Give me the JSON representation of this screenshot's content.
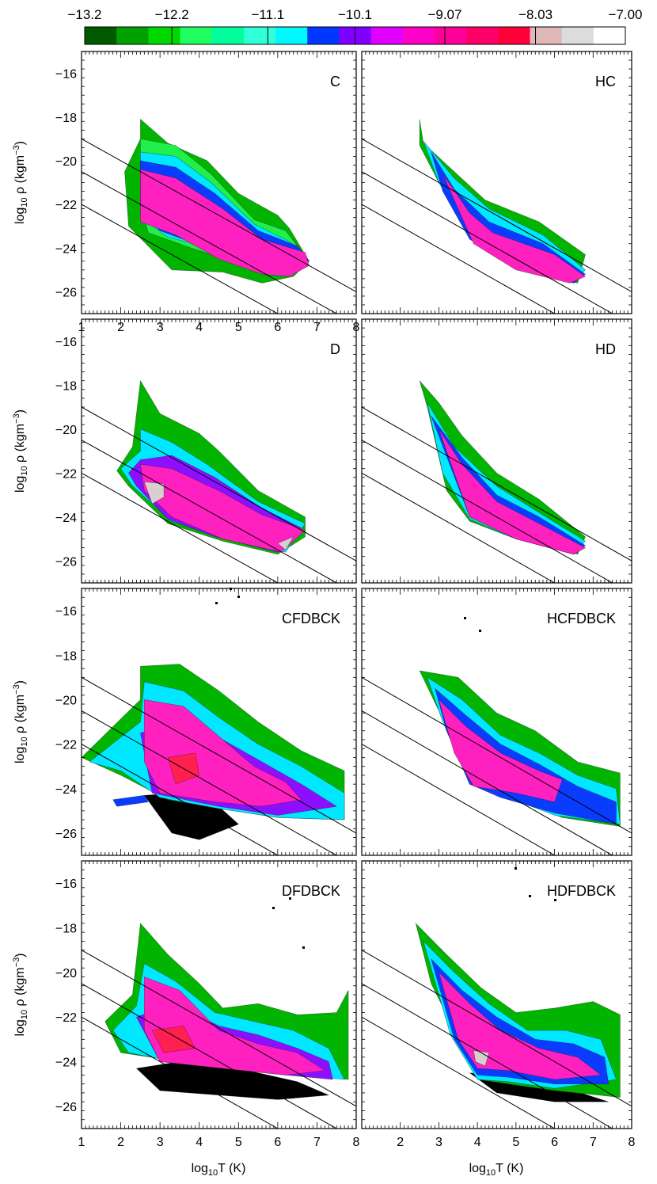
{
  "colorbar": {
    "tick_labels": [
      "−13.2",
      "−12.2",
      "−11.1",
      "−10.1",
      "−9.07",
      "−8.03",
      "−7.00"
    ],
    "tick_values": [
      -13.2,
      -12.2,
      -11.1,
      -10.1,
      -9.07,
      -8.03,
      -7.0
    ],
    "range": [
      -13.2,
      -7.0
    ],
    "colors": [
      "#005a00",
      "#00a000",
      "#00d800",
      "#20ff60",
      "#00ff9c",
      "#30ffd8",
      "#00f8ff",
      "#0038ff",
      "#8000ff",
      "#e000ff",
      "#ff00c8",
      "#ff0098",
      "#ff0068",
      "#ff0038",
      "#e0b8b8",
      "#dcdcdc",
      "#ffffff"
    ]
  },
  "axes": {
    "xlabel_main": "log",
    "xlabel_sub": "10",
    "xlabel_rest": "T (K)",
    "ylabel_main": "log",
    "ylabel_sub": "10",
    "ylabel_rho": "ρ",
    "ylabel_units": "(kgm",
    "ylabel_exp": "−3",
    "ylabel_close": ")"
  },
  "chart_data": [
    {
      "type": "heatmap",
      "label": "C",
      "xlim": [
        1,
        8
      ],
      "ylim": [
        -27,
        -15
      ],
      "x_ticks": [
        1,
        2,
        3,
        4,
        5,
        6,
        7,
        8
      ],
      "y_ticks": [
        -16,
        -18,
        -20,
        -22,
        -24,
        -26
      ],
      "y_tick_labels": [
        "−16",
        "−18",
        "−20",
        "−22",
        "−24",
        "−26"
      ],
      "x_tick_labels": [
        "1",
        "2",
        "3",
        "4",
        "5",
        "6",
        "7",
        "8"
      ]
    },
    {
      "type": "heatmap",
      "label": "HC",
      "xlim": [
        1,
        8
      ],
      "ylim": [
        -27,
        -15
      ],
      "x_ticks": [
        1,
        2,
        3,
        4,
        5,
        6,
        7,
        8
      ],
      "y_ticks": [
        -16,
        -18,
        -20,
        -22,
        -24,
        -26
      ]
    },
    {
      "type": "heatmap",
      "label": "D",
      "xlim": [
        1,
        8
      ],
      "ylim": [
        -27,
        -15
      ],
      "x_ticks": [
        1,
        2,
        3,
        4,
        5,
        6,
        7,
        8
      ],
      "y_ticks": [
        -16,
        -18,
        -20,
        -22,
        -24,
        -26
      ],
      "y_tick_labels": [
        "−16",
        "−18",
        "−20",
        "−22",
        "−24",
        "−26"
      ]
    },
    {
      "type": "heatmap",
      "label": "HD",
      "xlim": [
        1,
        8
      ],
      "ylim": [
        -27,
        -15
      ],
      "x_ticks": [
        1,
        2,
        3,
        4,
        5,
        6,
        7,
        8
      ],
      "y_ticks": [
        -16,
        -18,
        -20,
        -22,
        -24,
        -26
      ]
    },
    {
      "type": "heatmap",
      "label": "CFDBCK",
      "xlim": [
        1,
        8
      ],
      "ylim": [
        -27,
        -15
      ],
      "x_ticks": [
        1,
        2,
        3,
        4,
        5,
        6,
        7,
        8
      ],
      "y_ticks": [
        -16,
        -18,
        -20,
        -22,
        -24,
        -26
      ],
      "y_tick_labels": [
        "−16",
        "−18",
        "−20",
        "−22",
        "−24",
        "−26"
      ]
    },
    {
      "type": "heatmap",
      "label": "HCFDBCK",
      "xlim": [
        1,
        8
      ],
      "ylim": [
        -27,
        -15
      ],
      "x_ticks": [
        1,
        2,
        3,
        4,
        5,
        6,
        7,
        8
      ],
      "y_ticks": [
        -16,
        -18,
        -20,
        -22,
        -24,
        -26
      ]
    },
    {
      "type": "heatmap",
      "label": "DFDBCK",
      "xlim": [
        1,
        8
      ],
      "ylim": [
        -27,
        -15
      ],
      "x_ticks": [
        1,
        2,
        3,
        4,
        5,
        6,
        7,
        8
      ],
      "y_ticks": [
        -16,
        -18,
        -20,
        -22,
        -24,
        -26
      ],
      "y_tick_labels": [
        "−16",
        "−18",
        "−20",
        "−22",
        "−24",
        "−26"
      ],
      "x_tick_labels": [
        "1",
        "2",
        "3",
        "4",
        "5",
        "6",
        "7",
        "8"
      ]
    },
    {
      "type": "heatmap",
      "label": "HDFDBCK",
      "xlim": [
        1,
        8
      ],
      "ylim": [
        -27,
        -15
      ],
      "x_ticks": [
        1,
        2,
        3,
        4,
        5,
        6,
        7,
        8
      ],
      "y_ticks": [
        -16,
        -18,
        -20,
        -22,
        -24,
        -26
      ],
      "x_tick_labels": [
        "1",
        "2",
        "3",
        "4",
        "5",
        "6",
        "7",
        "8"
      ]
    }
  ]
}
